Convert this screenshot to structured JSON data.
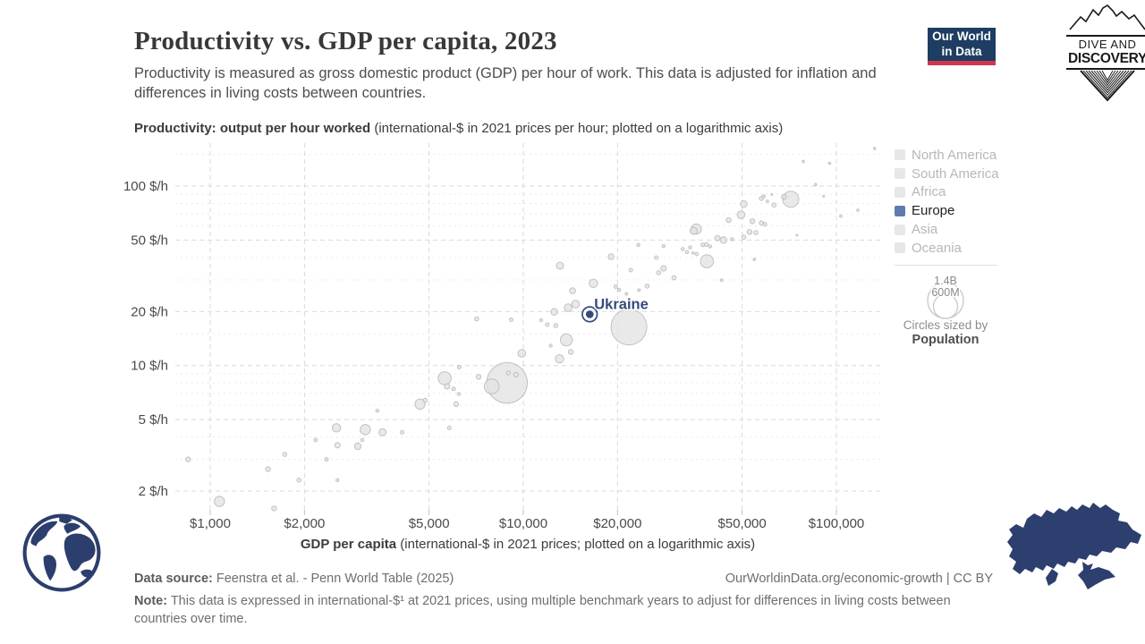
{
  "header": {
    "title": "Productivity vs. GDP per capita, 2023",
    "subtitle": "Productivity is measured as gross domestic product (GDP) per hour of work. This data is adjusted for inflation and differences in living costs between countries.",
    "owid_logo": {
      "line1": "Our World",
      "line2": "in Data",
      "bg_color": "#1d3d63",
      "bar_color": "#d0374f"
    },
    "watermark": {
      "line1": "DIVE AND",
      "line2": "DISCOVERY"
    }
  },
  "chart_data": {
    "type": "scatter",
    "title": "Productivity vs. GDP per capita, 2023",
    "x_axis": {
      "label_bold": "GDP per capita",
      "label_rest": " (international-$ in 2021 prices; plotted on a logarithmic axis)",
      "scale": "log",
      "ticks": [
        1000,
        2000,
        5000,
        10000,
        20000,
        50000,
        100000
      ],
      "tick_labels": [
        "$1,000",
        "$2,000",
        "$5,000",
        "$10,000",
        "$20,000",
        "$50,000",
        "$100,000"
      ],
      "range": [
        780,
        140000
      ]
    },
    "y_axis": {
      "label_bold": "Productivity: output per hour worked",
      "label_rest": " (international-$ in 2021 prices per hour; plotted on a logarithmic axis)",
      "scale": "log",
      "ticks": [
        100,
        50,
        20,
        10,
        5,
        2
      ],
      "tick_labels": [
        "100 $/h",
        "50 $/h",
        "20 $/h",
        "10 $/h",
        "5 $/h",
        "2 $/h"
      ],
      "minor_ticks": [
        3,
        4,
        6,
        7,
        8,
        9,
        15,
        30,
        40,
        60,
        70,
        80,
        90,
        150
      ],
      "range": [
        1.5,
        170
      ]
    },
    "legend": {
      "active_color": "#5f7bb0",
      "inactive_color": "#e7e7e7",
      "items": [
        {
          "label": "North America",
          "active": false
        },
        {
          "label": "South America",
          "active": false
        },
        {
          "label": "Africa",
          "active": false
        },
        {
          "label": "Europe",
          "active": true
        },
        {
          "label": "Asia",
          "active": false
        },
        {
          "label": "Oceania",
          "active": false
        }
      ]
    },
    "size_legend": {
      "outer_label": "1.4B",
      "inner_label": "600M",
      "caption": "Circles sized by",
      "caption_bold": "Population"
    },
    "highlight": {
      "name": "Ukraine",
      "gdp_per_capita": 16300,
      "productivity": 19.3,
      "color": "#35497b"
    },
    "point_format": [
      "gdp_per_capita_intl_dollar",
      "productivity_dollar_per_hour",
      "bubble_radius_px"
    ],
    "points": [
      [
        850,
        3.0,
        2.7
      ],
      [
        1070,
        1.75,
        5.7
      ],
      [
        1530,
        2.65,
        2.7
      ],
      [
        1600,
        1.6,
        2.7
      ],
      [
        1730,
        3.2,
        2.3
      ],
      [
        1920,
        2.3,
        2.3
      ],
      [
        2170,
        3.85,
        2
      ],
      [
        2350,
        3.0,
        2
      ],
      [
        2530,
        4.5,
        4.7
      ],
      [
        2550,
        3.6,
        3
      ],
      [
        2550,
        2.3,
        1.7
      ],
      [
        2960,
        3.55,
        3.7
      ],
      [
        3130,
        4.4,
        5.7
      ],
      [
        3060,
        3.85,
        1.7
      ],
      [
        3420,
        5.6,
        1.7
      ],
      [
        3550,
        4.25,
        4
      ],
      [
        4100,
        4.25,
        2
      ],
      [
        4680,
        6.1,
        5.7
      ],
      [
        4860,
        6.4,
        2.3
      ],
      [
        5610,
        8.5,
        7.3
      ],
      [
        5710,
        7.65,
        3
      ],
      [
        5990,
        7.4,
        2
      ],
      [
        6220,
        6.95,
        1.7
      ],
      [
        6100,
        6.1,
        2.7
      ],
      [
        5800,
        4.5,
        2
      ],
      [
        7200,
        8.65,
        2.7
      ],
      [
        6240,
        9.8,
        2
      ],
      [
        7930,
        7.65,
        8.3
      ],
      [
        8870,
        8.0,
        22.7
      ],
      [
        8960,
        9.1,
        2.3
      ],
      [
        9470,
        8.9,
        2.7
      ],
      [
        9890,
        11.7,
        4.3
      ],
      [
        9150,
        18.0,
        2
      ],
      [
        12230,
        12.9,
        1.7
      ],
      [
        13050,
        10.9,
        4.7
      ],
      [
        14180,
        11.9,
        2.7
      ],
      [
        13730,
        13.9,
        6.7
      ],
      [
        7100,
        18.2,
        2.3
      ],
      [
        11400,
        17.9,
        1.7
      ],
      [
        11930,
        16.9,
        2
      ],
      [
        12700,
        16.7,
        2.3
      ],
      [
        12560,
        19.9,
        3.7
      ],
      [
        13100,
        36.0,
        4
      ],
      [
        14360,
        26.1,
        3.3
      ],
      [
        14680,
        22.0,
        4.3
      ],
      [
        13900,
        21.0,
        4.3
      ],
      [
        16750,
        28.7,
        4.7
      ],
      [
        19070,
        40.4,
        3.3
      ],
      [
        19740,
        27.5,
        2
      ],
      [
        20230,
        26.4,
        1.7
      ],
      [
        21350,
        25.1,
        1.5
      ],
      [
        21750,
        16.4,
        20
      ],
      [
        22050,
        34.0,
        2
      ],
      [
        23300,
        47.0,
        1.7
      ],
      [
        23400,
        26.3,
        1.5
      ],
      [
        24870,
        27.7,
        2.3
      ],
      [
        26600,
        39.9,
        2
      ],
      [
        27050,
        32.9,
        2.3
      ],
      [
        28060,
        46.3,
        1.7
      ],
      [
        28060,
        34.8,
        3
      ],
      [
        30270,
        30.8,
        2.3
      ],
      [
        32290,
        44.6,
        1.7
      ],
      [
        33350,
        42.9,
        1.7
      ],
      [
        34100,
        45.5,
        1.7
      ],
      [
        34850,
        42.4,
        1.3
      ],
      [
        35700,
        57.6,
        5.7
      ],
      [
        35000,
        56.3,
        4
      ],
      [
        35800,
        41.8,
        1.7
      ],
      [
        37400,
        47.0,
        2
      ],
      [
        38400,
        47.3,
        2.3
      ],
      [
        38600,
        38.1,
        7.3
      ],
      [
        39500,
        46.1,
        1.7
      ],
      [
        41700,
        51.3,
        3
      ],
      [
        43600,
        50.0,
        3.7
      ],
      [
        45300,
        64.6,
        2.7
      ],
      [
        46400,
        50.6,
        1.7
      ],
      [
        43000,
        29.9,
        1.3
      ],
      [
        50600,
        79.3,
        3.7
      ],
      [
        49600,
        69.1,
        4.3
      ],
      [
        50600,
        51.9,
        2.3
      ],
      [
        52800,
        55.5,
        2.7
      ],
      [
        53900,
        63.7,
        2.7
      ],
      [
        54700,
        39.0,
        1.3
      ],
      [
        55300,
        55.0,
        2.3
      ],
      [
        57600,
        85.3,
        2.3
      ],
      [
        58600,
        87.7,
        1.7
      ],
      [
        60200,
        82.2,
        1.3
      ],
      [
        57600,
        62.3,
        2.3
      ],
      [
        59100,
        61.3,
        2
      ],
      [
        62200,
        89.7,
        1
      ],
      [
        63200,
        78.4,
        2.3
      ],
      [
        68000,
        87.0,
        2.7
      ],
      [
        71500,
        84.5,
        9
      ],
      [
        74800,
        53.2,
        1
      ],
      [
        78400,
        137,
        1.3
      ],
      [
        85800,
        102,
        1.3
      ],
      [
        91000,
        87.7,
        1
      ],
      [
        95100,
        134,
        1.3
      ],
      [
        103300,
        68,
        1.3
      ],
      [
        117100,
        73.3,
        1.3
      ],
      [
        132400,
        162,
        1.3
      ]
    ]
  },
  "footer": {
    "source_label": "Data source:",
    "source_text": " Feenstra et al. - Penn World Table (2025)",
    "link_text": "OurWorldinData.org/economic-growth | CC BY",
    "note_label": "Note:",
    "note_text": " This data is expressed in international-$¹ at 2021 prices, using multiple benchmark years to adjust for differences in living costs between countries over time."
  }
}
